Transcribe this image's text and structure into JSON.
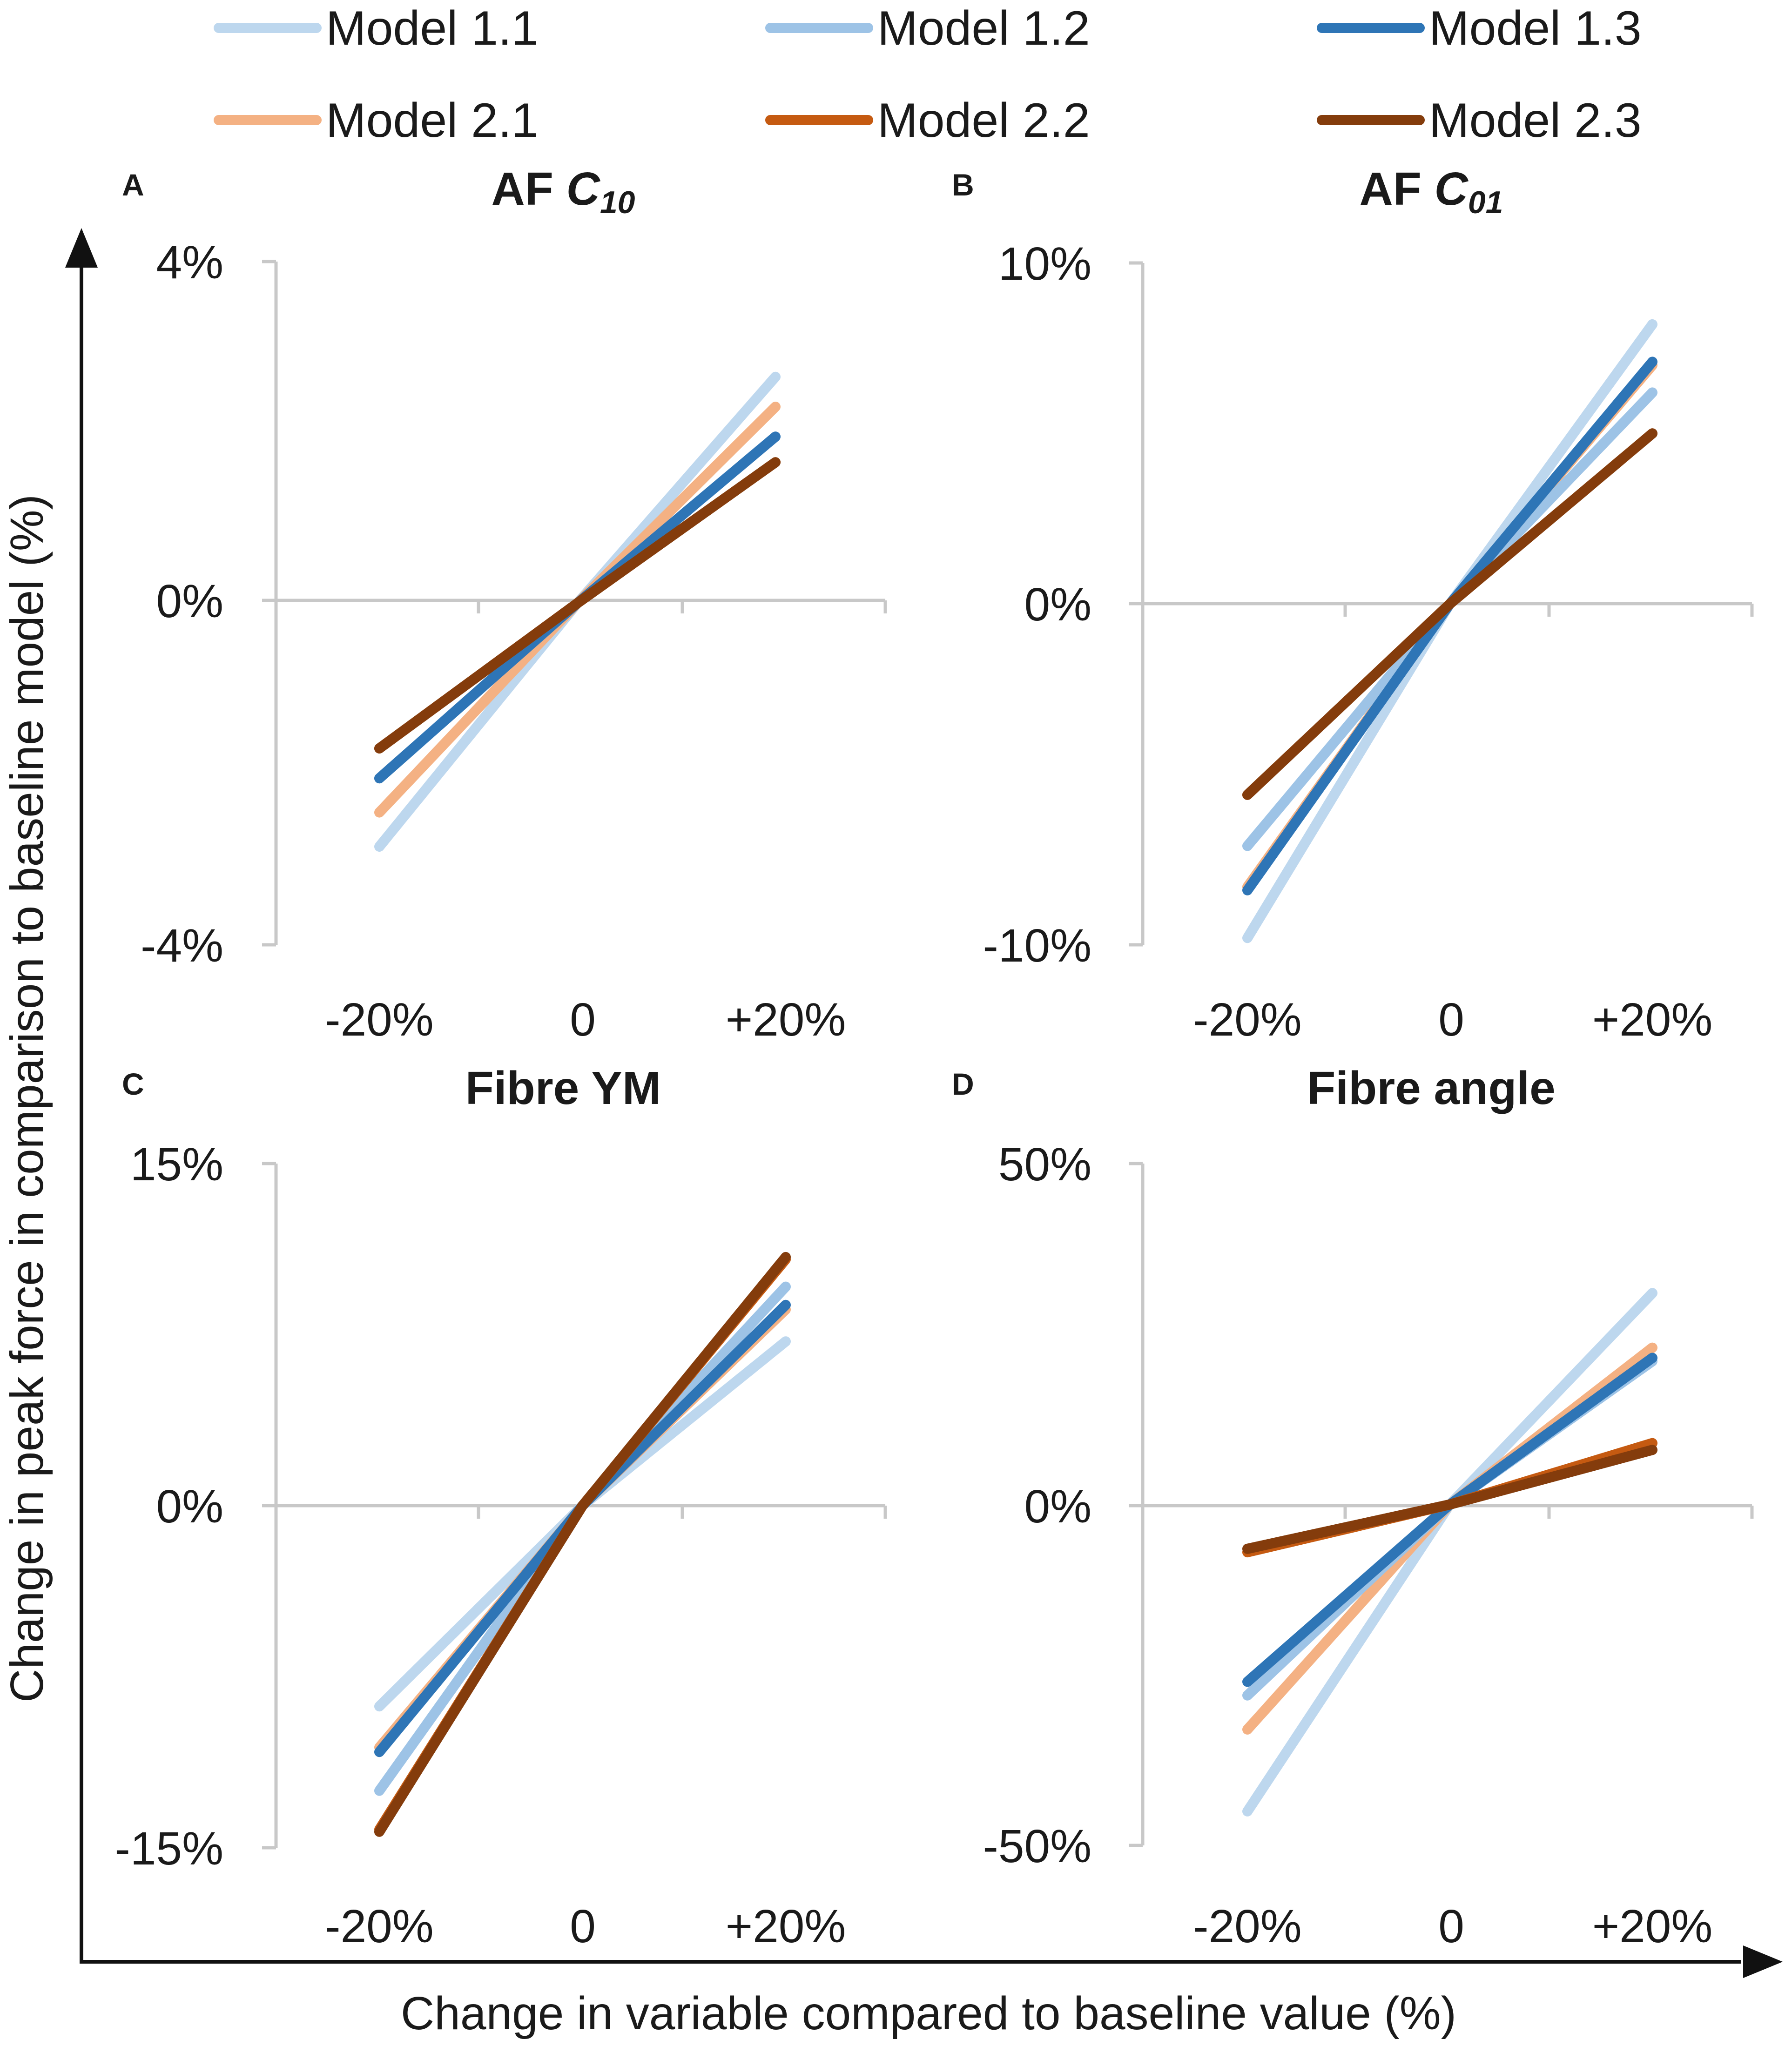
{
  "colors": {
    "model_1_1": "#bdd7ee",
    "model_1_2": "#9dc3e6",
    "model_1_3": "#2e75b6",
    "model_2_1": "#f4b183",
    "model_2_2": "#c55a11",
    "model_2_3": "#843c0c"
  },
  "legend": [
    {
      "name": "Model 1.1",
      "color": "#bdd7ee"
    },
    {
      "name": "Model 1.2",
      "color": "#9dc3e6"
    },
    {
      "name": "Model 1.3",
      "color": "#2e75b6"
    },
    {
      "name": "Model 2.1",
      "color": "#f4b183"
    },
    {
      "name": "Model 2.2",
      "color": "#c55a11"
    },
    {
      "name": "Model 2.3",
      "color": "#843c0c"
    }
  ],
  "axes": {
    "ylabel": "Change in peak force in comparison to baseline model (%)",
    "xlabel": "Change in variable compared to baseline value (%)"
  },
  "chart_data": [
    {
      "type": "line",
      "letter": "A",
      "title": {
        "prefix": "AF ",
        "symbol": "C",
        "subscript": "10"
      },
      "x": [
        -20,
        0,
        20
      ],
      "categories": [
        "-20%",
        "0",
        "+20%"
      ],
      "ylim": [
        -4,
        4
      ],
      "yticks": [
        "4%",
        "0%",
        "-4%"
      ],
      "series": [
        {
          "name": "Model 1.1",
          "values": [
            -2.85,
            0,
            2.65
          ]
        },
        {
          "name": "Model 1.2",
          "values": [
            -2.05,
            0,
            1.95
          ]
        },
        {
          "name": "Model 1.3",
          "values": [
            -2.05,
            0,
            1.95
          ]
        },
        {
          "name": "Model 2.1",
          "values": [
            -2.45,
            0,
            2.3
          ]
        },
        {
          "name": "Model 2.2",
          "values": [
            -1.7,
            0,
            1.65
          ]
        },
        {
          "name": "Model 2.3",
          "values": [
            -1.7,
            0,
            1.65
          ]
        }
      ]
    },
    {
      "type": "line",
      "letter": "B",
      "title": {
        "prefix": "AF ",
        "symbol": "C",
        "subscript": "01"
      },
      "x": [
        -20,
        0,
        20
      ],
      "categories": [
        "-20%",
        "0",
        "+20%"
      ],
      "ylim": [
        -10,
        10
      ],
      "yticks": [
        "10%",
        "0%",
        "-10%"
      ],
      "series": [
        {
          "name": "Model 1.1",
          "values": [
            -9.8,
            0,
            8.2
          ]
        },
        {
          "name": "Model 1.2",
          "values": [
            -7.1,
            0,
            6.2
          ]
        },
        {
          "name": "Model 1.3",
          "values": [
            -8.4,
            0,
            7.1
          ]
        },
        {
          "name": "Model 2.1",
          "values": [
            -8.3,
            0,
            7.0
          ]
        },
        {
          "name": "Model 2.2",
          "values": [
            -5.6,
            0,
            5.0
          ]
        },
        {
          "name": "Model 2.3",
          "values": [
            -5.6,
            0,
            5.0
          ]
        }
      ]
    },
    {
      "type": "line",
      "letter": "C",
      "title": {
        "prefix": "Fibre YM",
        "symbol": "",
        "subscript": ""
      },
      "x": [
        -20,
        0,
        20
      ],
      "categories": [
        "-20%",
        "0",
        "+20%"
      ],
      "ylim": [
        -15,
        15
      ],
      "yticks": [
        "15%",
        "0%",
        "-15%"
      ],
      "series": [
        {
          "name": "Model 1.1",
          "values": [
            -8.8,
            0,
            7.2
          ]
        },
        {
          "name": "Model 1.2",
          "values": [
            -12.5,
            0,
            9.6
          ]
        },
        {
          "name": "Model 1.3",
          "values": [
            -10.8,
            0,
            8.8
          ]
        },
        {
          "name": "Model 2.1",
          "values": [
            -10.6,
            0,
            8.6
          ]
        },
        {
          "name": "Model 2.2",
          "values": [
            -14.2,
            0,
            10.8
          ]
        },
        {
          "name": "Model 2.3",
          "values": [
            -14.3,
            0,
            10.9
          ]
        }
      ]
    },
    {
      "type": "line",
      "letter": "D",
      "title": {
        "prefix": "Fibre angle",
        "symbol": "",
        "subscript": ""
      },
      "x": [
        -20,
        0,
        20
      ],
      "categories": [
        "-20%",
        "0",
        "+20%"
      ],
      "ylim": [
        -50,
        50
      ],
      "yticks": [
        "50%",
        "0%",
        "-50%"
      ],
      "series": [
        {
          "name": "Model 1.1",
          "values": [
            -45,
            0,
            31
          ]
        },
        {
          "name": "Model 1.2",
          "values": [
            -28,
            0,
            21
          ]
        },
        {
          "name": "Model 1.3",
          "values": [
            -26,
            0,
            21.5
          ]
        },
        {
          "name": "Model 2.1",
          "values": [
            -33,
            0,
            23
          ]
        },
        {
          "name": "Model 2.2",
          "values": [
            -7,
            0,
            9
          ]
        },
        {
          "name": "Model 2.3",
          "values": [
            -6.5,
            0,
            8
          ]
        }
      ]
    }
  ]
}
